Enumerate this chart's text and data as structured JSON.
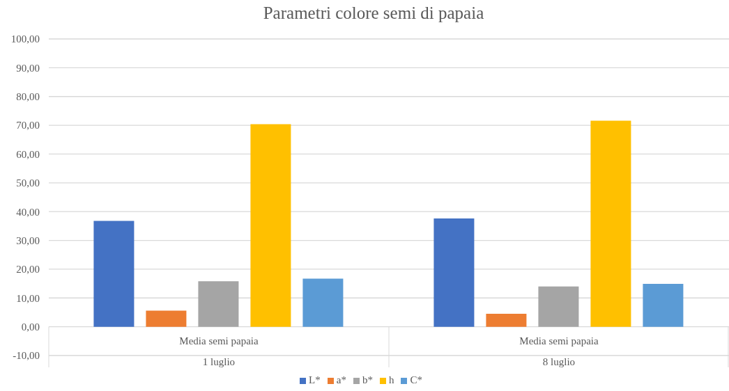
{
  "chart_data": {
    "type": "bar",
    "title": "Parametri colore semi di papaia",
    "categories": [
      "Media semi papaia\n1 luglio",
      "Media semi papaia\n8 luglio"
    ],
    "series": [
      {
        "name": "L*",
        "color": "#4472c4",
        "values": [
          36.8,
          37.6
        ]
      },
      {
        "name": "a*",
        "color": "#ed7d31",
        "values": [
          5.6,
          4.5
        ]
      },
      {
        "name": "b*",
        "color": "#a5a5a5",
        "values": [
          15.8,
          14.0
        ]
      },
      {
        "name": "h",
        "color": "#ffc000",
        "values": [
          70.4,
          71.6
        ]
      },
      {
        "name": "C*",
        "color": "#5b9bd5",
        "values": [
          16.7,
          14.9
        ]
      }
    ],
    "ylim": [
      -10,
      100
    ],
    "yticks": [
      {
        "value": -10,
        "label": "-10,00"
      },
      {
        "value": 0,
        "label": "0,00"
      },
      {
        "value": 10,
        "label": "10,00"
      },
      {
        "value": 20,
        "label": "20,00"
      },
      {
        "value": 30,
        "label": "30,00"
      },
      {
        "value": 40,
        "label": "40,00"
      },
      {
        "value": 50,
        "label": "50,00"
      },
      {
        "value": 60,
        "label": "60,00"
      },
      {
        "value": 70,
        "label": "70,00"
      },
      {
        "value": 80,
        "label": "80,00"
      },
      {
        "value": 90,
        "label": "90,00"
      },
      {
        "value": 100,
        "label": "100,00"
      }
    ],
    "grid": "y",
    "legend": "bottom"
  }
}
